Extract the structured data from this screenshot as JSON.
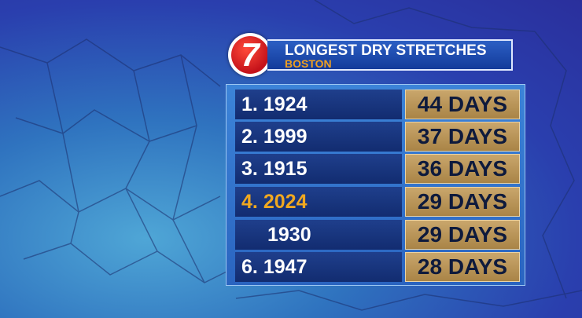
{
  "logo": "7",
  "header": {
    "title": "LONGEST DRY STRETCHES",
    "subtitle": "BOSTON"
  },
  "table": {
    "rows": [
      {
        "rank": "1.",
        "year": "1924",
        "days": "44 DAYS",
        "color": "#ffffff"
      },
      {
        "rank": "2.",
        "year": "1999",
        "days": "37 DAYS",
        "color": "#ffffff"
      },
      {
        "rank": "3.",
        "year": "1915",
        "days": "36 DAYS",
        "color": "#ffffff"
      },
      {
        "rank": "4.",
        "year": "2024",
        "days": "29 DAYS",
        "color": "#f0a820"
      },
      {
        "year": "1930",
        "days": "29 DAYS",
        "color": "#ffffff"
      },
      {
        "rank": "6.",
        "year": "1947",
        "days": "28 DAYS",
        "color": "#ffffff"
      }
    ]
  }
}
